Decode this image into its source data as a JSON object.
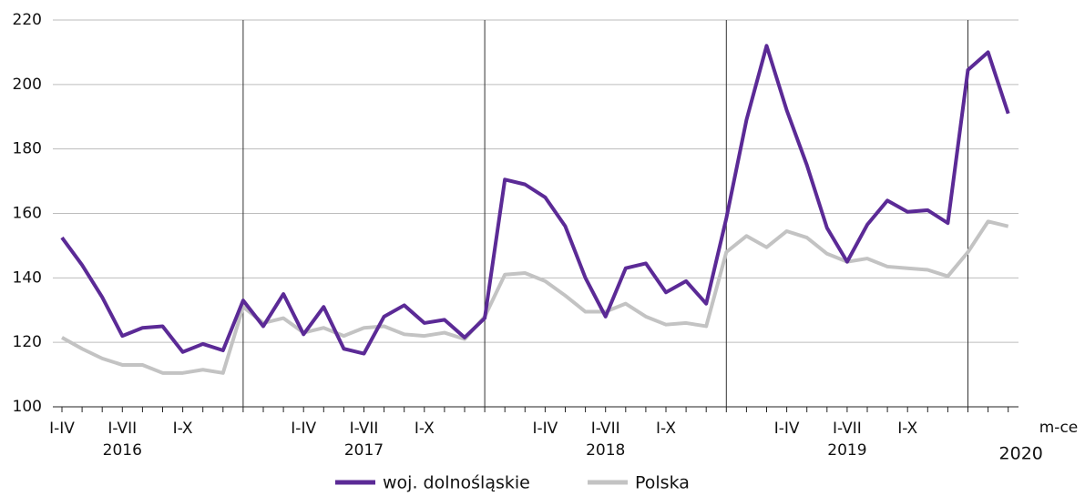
{
  "chart_data": {
    "type": "line",
    "categories": [
      "I-IV",
      null,
      null,
      "I-VII",
      null,
      null,
      "I-X",
      null,
      null,
      null,
      null,
      null,
      "I-IV",
      null,
      null,
      "I-VII",
      null,
      null,
      "I-X",
      null,
      null,
      null,
      null,
      null,
      "I-IV",
      null,
      null,
      "I-VII",
      null,
      null,
      "I-X",
      null,
      null,
      null,
      null,
      null,
      "I-IV",
      null,
      null,
      "I-VII",
      null,
      null,
      "I-X",
      null,
      null,
      null,
      null,
      null
    ],
    "year_labels": [
      null,
      null,
      null,
      "2016",
      null,
      null,
      null,
      null,
      null,
      null,
      null,
      null,
      null,
      null,
      null,
      "2017",
      null,
      null,
      null,
      null,
      null,
      null,
      null,
      null,
      null,
      null,
      null,
      "2018",
      null,
      null,
      null,
      null,
      null,
      null,
      null,
      null,
      null,
      null,
      null,
      "2019",
      null,
      null,
      null,
      null,
      null,
      null,
      null,
      "2020"
    ],
    "x_label": "m-ce",
    "series": [
      {
        "name": "woj. dolnośląskie",
        "color": "#5b2a96",
        "values": [
          152.5,
          144,
          134,
          122,
          124.5,
          125,
          117,
          119.5,
          117.5,
          133,
          125,
          135,
          122.5,
          131,
          118,
          116.5,
          128,
          131.5,
          126,
          127,
          121.5,
          127.5,
          170.5,
          169,
          165,
          156,
          140,
          128,
          143,
          144.5,
          135.5,
          139,
          132,
          158.5,
          189,
          212,
          192,
          175,
          155.5,
          145,
          156.5,
          164,
          160.5,
          161,
          157,
          204.5,
          210,
          191
        ]
      },
      {
        "name": "Polska",
        "color": "#c3c3c3",
        "values": [
          121.5,
          118,
          115,
          113,
          113,
          110.5,
          110.5,
          111.5,
          110.5,
          131,
          126,
          127.5,
          123,
          124.5,
          122,
          124.5,
          125,
          122.5,
          122,
          123,
          121,
          128,
          141,
          141.5,
          139,
          134.5,
          129.5,
          129.5,
          132,
          128,
          125.5,
          126,
          125,
          148,
          153,
          149.5,
          154.5,
          152.5,
          147.5,
          145,
          146,
          143.5,
          143,
          142.5,
          140.5,
          148,
          157.5,
          156
        ]
      }
    ],
    "ylim": [
      100,
      220
    ],
    "yticks": [
      100,
      120,
      140,
      160,
      180,
      200,
      220
    ],
    "grid": true
  }
}
